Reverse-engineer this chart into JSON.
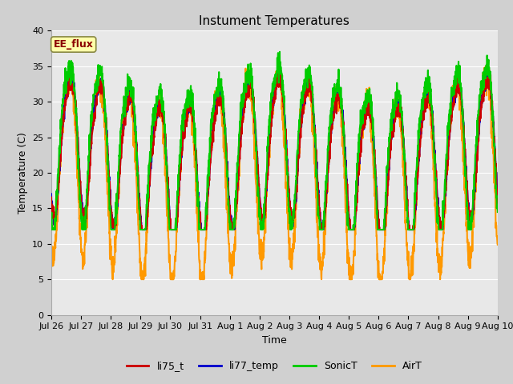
{
  "title": "Instument Temperatures",
  "xlabel": "Time",
  "ylabel": "Temperature (C)",
  "ylim": [
    0,
    40
  ],
  "yticks": [
    0,
    5,
    10,
    15,
    20,
    25,
    30,
    35,
    40
  ],
  "fig_bg": "#d0d0d0",
  "axes_bg": "#e8e8e8",
  "grid_color": "#ffffff",
  "line_colors": {
    "li75_t": "#cc0000",
    "li77_temp": "#0000cc",
    "SonicT": "#00cc00",
    "AirT": "#ff9900"
  },
  "line_width": 1.5,
  "annotation_text": "EE_flux",
  "annotation_color": "#8b0000",
  "annotation_bg": "#ffffaa",
  "annotation_border": "#888844",
  "x_tick_labels": [
    "Jul 26",
    "Jul 27",
    "Jul 28",
    "Jul 29",
    "Jul 30",
    "Jul 31",
    "Aug 1",
    "Aug 2",
    "Aug 3",
    "Aug 4",
    "Aug 5",
    "Aug 6",
    "Aug 7",
    "Aug 8",
    "Aug 9",
    "Aug 10"
  ],
  "title_fontsize": 11,
  "axis_label_fontsize": 9,
  "tick_fontsize": 8
}
